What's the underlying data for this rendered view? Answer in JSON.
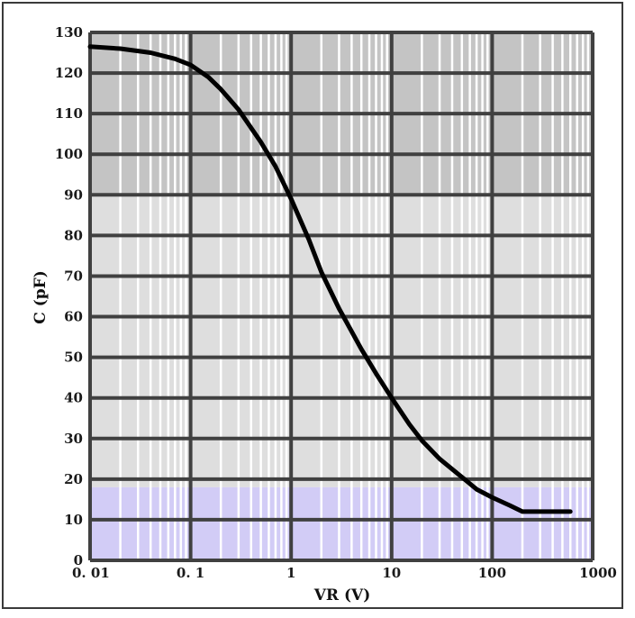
{
  "chart_data": {
    "type": "line",
    "xscale": "log",
    "xlim": [
      0.01,
      1000
    ],
    "ylim": [
      0,
      130
    ],
    "xlabel": "VR (V)",
    "ylabel": "C (pF)",
    "x_ticks": [
      "0. 01",
      "0. 1",
      "1",
      "10",
      "100",
      "1000"
    ],
    "y_ticks": [
      "0",
      "10",
      "20",
      "30",
      "40",
      "50",
      "60",
      "70",
      "80",
      "90",
      "100",
      "110",
      "120",
      "130"
    ],
    "grid": true,
    "series": [
      {
        "x": [
          0.01,
          0.02,
          0.04,
          0.07,
          0.1,
          0.15,
          0.2,
          0.3,
          0.5,
          0.7,
          1,
          1.5,
          2,
          3,
          5,
          7,
          10,
          15,
          20,
          30,
          50,
          70,
          100,
          150,
          200,
          300,
          500,
          600
        ],
        "y": [
          126.5,
          126,
          125,
          123.5,
          122,
          119,
          116,
          111,
          103,
          97,
          89,
          79,
          71,
          62,
          52,
          46,
          40,
          33.5,
          29.5,
          25,
          20.5,
          17.5,
          15.5,
          13.5,
          12,
          12,
          12,
          12
        ]
      }
    ],
    "colors": {
      "line": "#000000",
      "grid_major": "#404040",
      "grid_minor": "#ffffff",
      "band_top": "#c4c4c4",
      "band_middle": "#dedede",
      "band_bottom": "#d2ccf6"
    }
  }
}
